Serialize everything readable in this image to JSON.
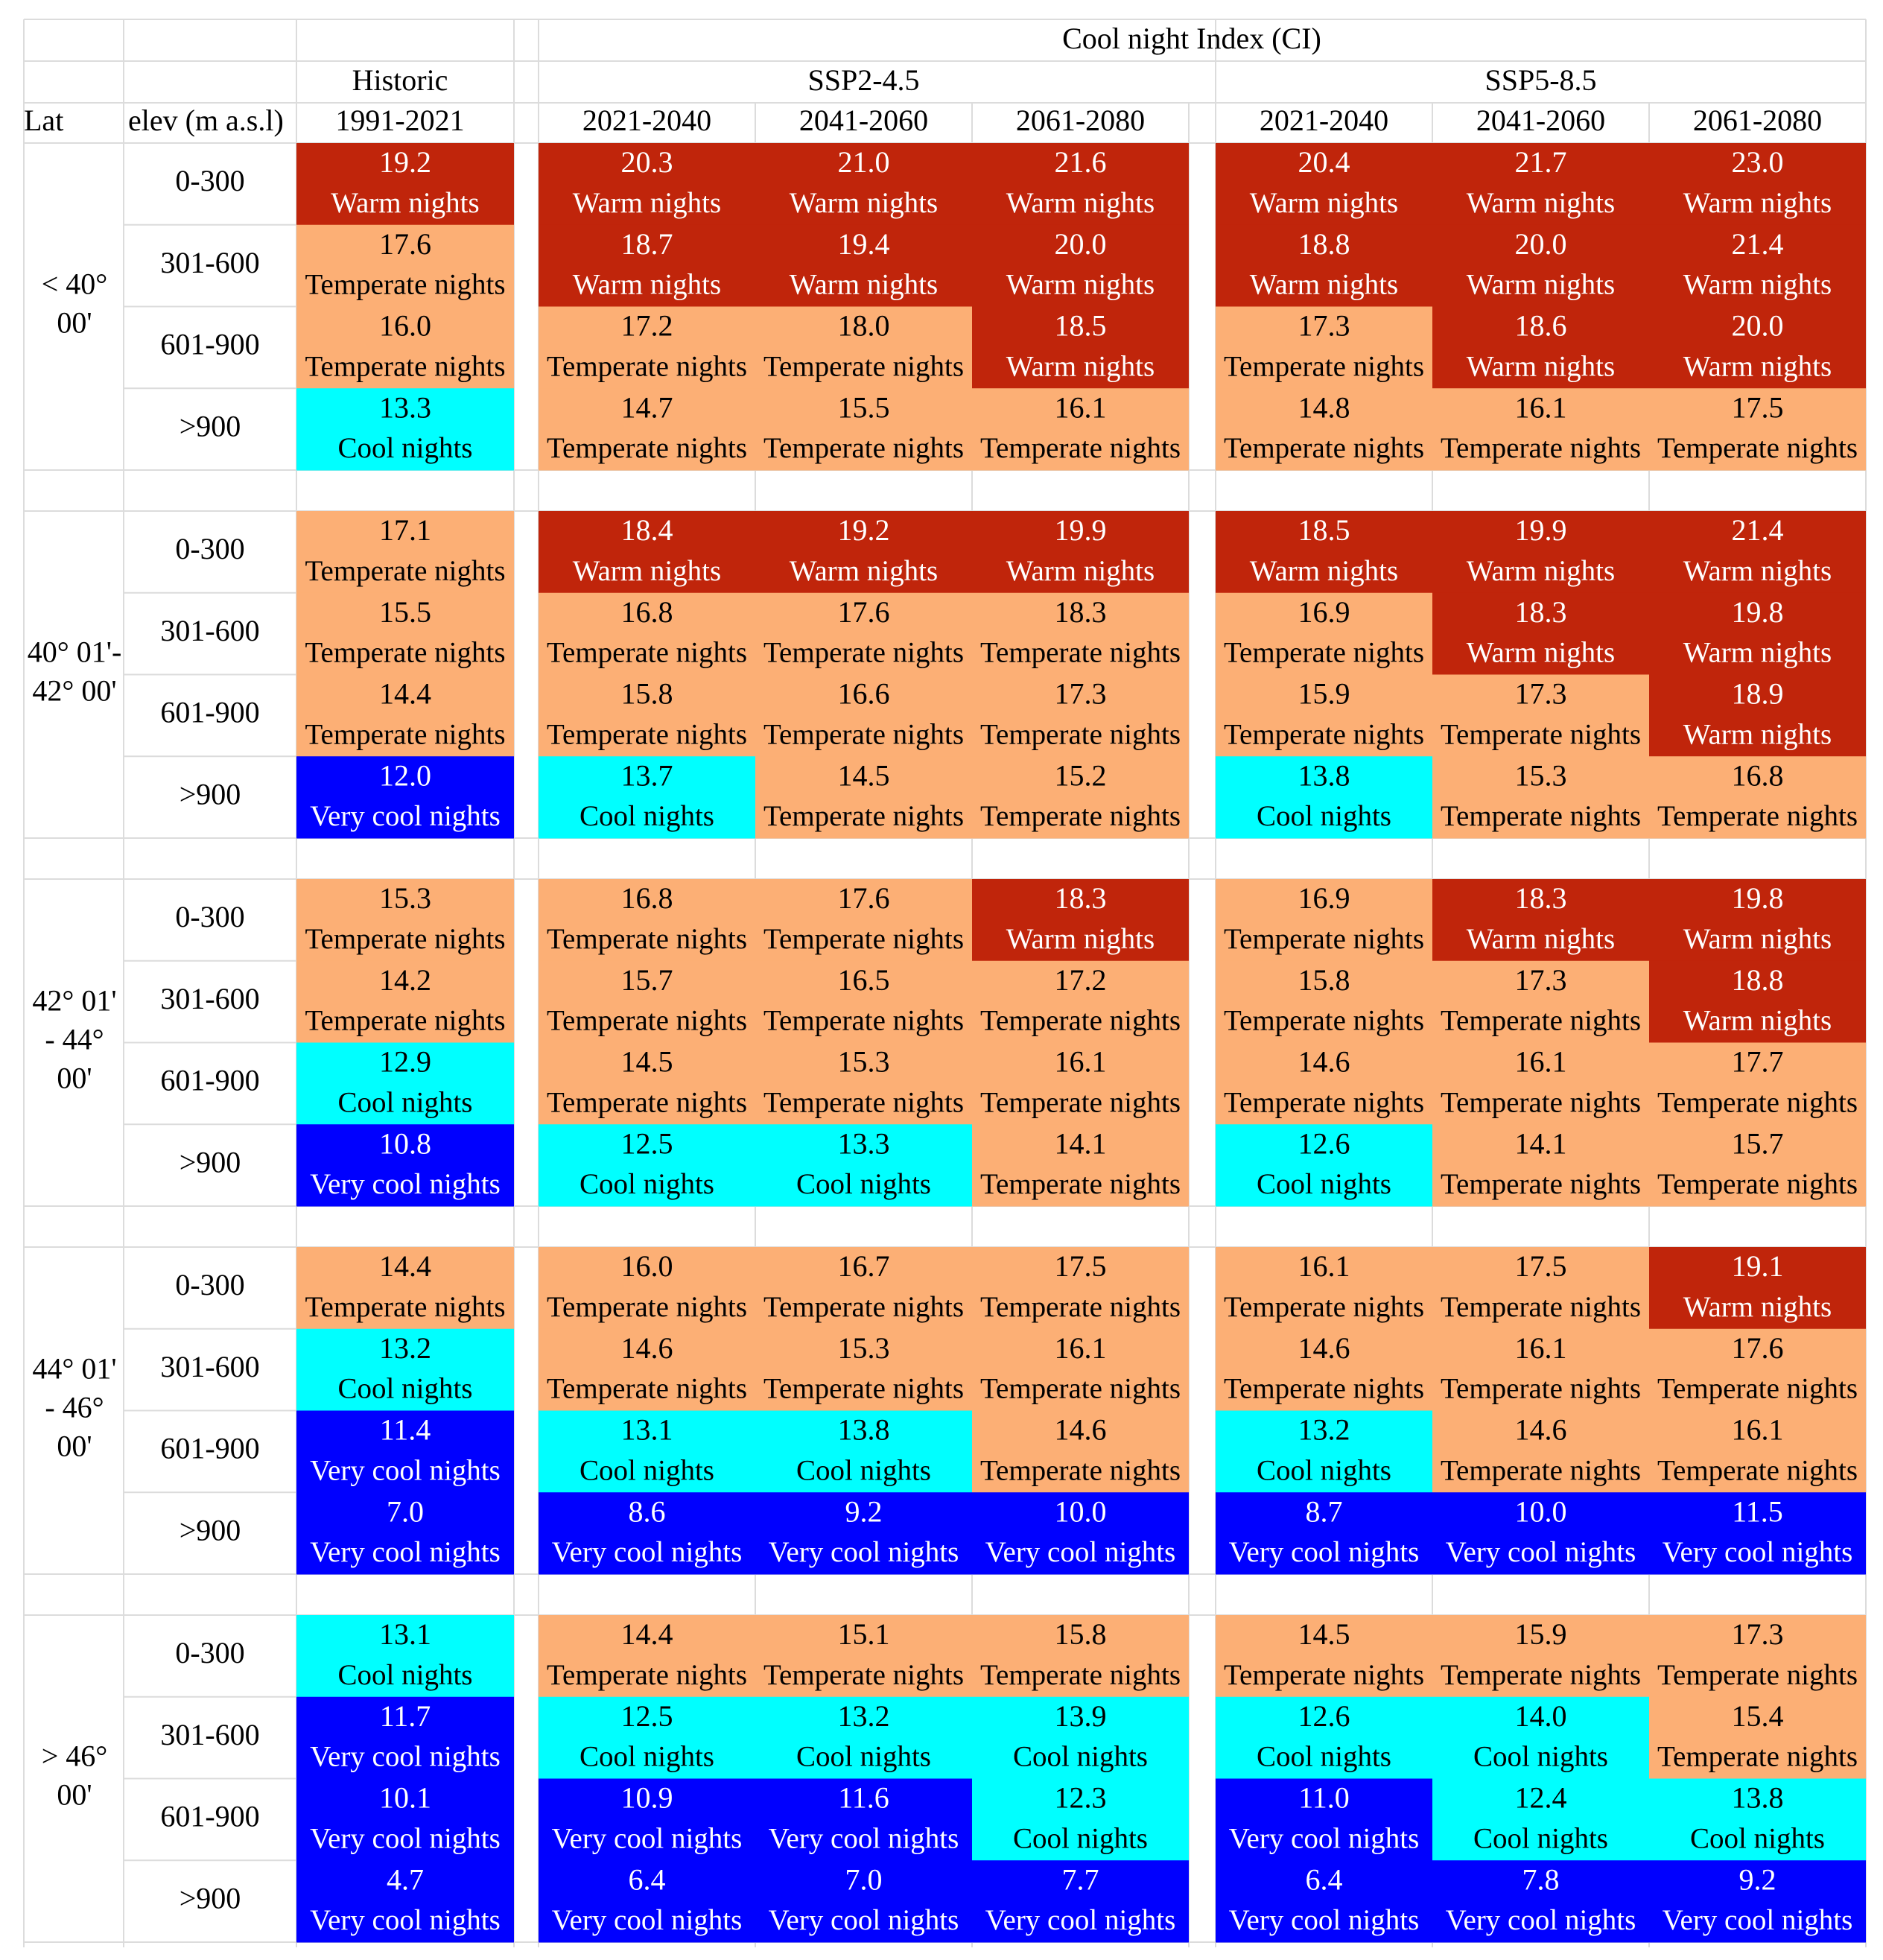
{
  "chart_data": {
    "type": "heatmap",
    "title": "Cool night Index (CI)",
    "row_header": {
      "lat": "Lat",
      "elev": "elev (m a.s.l)"
    },
    "historic": {
      "label": "Historic",
      "period": "1991-2021"
    },
    "scenarios": [
      {
        "name": "SSP2-4.5",
        "periods": [
          "2021-2040",
          "2041-2060",
          "2061-2080"
        ]
      },
      {
        "name": "SSP5-8.5",
        "periods": [
          "2021-2040",
          "2041-2060",
          "2061-2080"
        ]
      }
    ],
    "elevations": [
      "0-300",
      "301-600",
      "601-900",
      ">900"
    ],
    "categories": {
      "warm": {
        "label": "Warm nights",
        "color": "#c0250b",
        "text_color": "#ffffff"
      },
      "temperate": {
        "label": "Temperate nights",
        "color": "#fcaf75",
        "text_color": "#000000"
      },
      "cool": {
        "label": "Cool nights",
        "color": "#00ffff",
        "text_color": "#000000"
      },
      "verycool": {
        "label": "Very cool nights",
        "color": "#0000ff",
        "text_color": "#ffffff"
      }
    },
    "groups": [
      {
        "lat": [
          "< 40°",
          "00'"
        ],
        "rows": [
          {
            "elev": "0-300",
            "values": [
              19.2,
              20.3,
              21.0,
              21.6,
              20.4,
              21.7,
              23.0
            ],
            "classes": [
              "warm",
              "warm",
              "warm",
              "warm",
              "warm",
              "warm",
              "warm"
            ]
          },
          {
            "elev": "301-600",
            "values": [
              17.6,
              18.7,
              19.4,
              20.0,
              18.8,
              20.0,
              21.4
            ],
            "classes": [
              "temperate",
              "warm",
              "warm",
              "warm",
              "warm",
              "warm",
              "warm"
            ]
          },
          {
            "elev": "601-900",
            "values": [
              16.0,
              17.2,
              18.0,
              18.5,
              17.3,
              18.6,
              20.0
            ],
            "classes": [
              "temperate",
              "temperate",
              "temperate",
              "warm",
              "temperate",
              "warm",
              "warm"
            ]
          },
          {
            "elev": ">900",
            "values": [
              13.3,
              14.7,
              15.5,
              16.1,
              14.8,
              16.1,
              17.5
            ],
            "classes": [
              "cool",
              "temperate",
              "temperate",
              "temperate",
              "temperate",
              "temperate",
              "temperate"
            ]
          }
        ]
      },
      {
        "lat": [
          "40° 01'-",
          "42° 00'"
        ],
        "rows": [
          {
            "elev": "0-300",
            "values": [
              17.1,
              18.4,
              19.2,
              19.9,
              18.5,
              19.9,
              21.4
            ],
            "classes": [
              "temperate",
              "warm",
              "warm",
              "warm",
              "warm",
              "warm",
              "warm"
            ]
          },
          {
            "elev": "301-600",
            "values": [
              15.5,
              16.8,
              17.6,
              18.3,
              16.9,
              18.3,
              19.8
            ],
            "classes": [
              "temperate",
              "temperate",
              "temperate",
              "temperate",
              "temperate",
              "warm",
              "warm"
            ]
          },
          {
            "elev": "601-900",
            "values": [
              14.4,
              15.8,
              16.6,
              17.3,
              15.9,
              17.3,
              18.9
            ],
            "classes": [
              "temperate",
              "temperate",
              "temperate",
              "temperate",
              "temperate",
              "temperate",
              "warm"
            ]
          },
          {
            "elev": ">900",
            "values": [
              12.0,
              13.7,
              14.5,
              15.2,
              13.8,
              15.3,
              16.8
            ],
            "classes": [
              "verycool",
              "cool",
              "temperate",
              "temperate",
              "cool",
              "temperate",
              "temperate"
            ]
          }
        ]
      },
      {
        "lat": [
          "42° 01'",
          "- 44°",
          "00'"
        ],
        "rows": [
          {
            "elev": "0-300",
            "values": [
              15.3,
              16.8,
              17.6,
              18.3,
              16.9,
              18.3,
              19.8
            ],
            "classes": [
              "temperate",
              "temperate",
              "temperate",
              "warm",
              "temperate",
              "warm",
              "warm"
            ]
          },
          {
            "elev": "301-600",
            "values": [
              14.2,
              15.7,
              16.5,
              17.2,
              15.8,
              17.3,
              18.8
            ],
            "classes": [
              "temperate",
              "temperate",
              "temperate",
              "temperate",
              "temperate",
              "temperate",
              "warm"
            ]
          },
          {
            "elev": "601-900",
            "values": [
              12.9,
              14.5,
              15.3,
              16.1,
              14.6,
              16.1,
              17.7
            ],
            "classes": [
              "cool",
              "temperate",
              "temperate",
              "temperate",
              "temperate",
              "temperate",
              "temperate"
            ]
          },
          {
            "elev": ">900",
            "values": [
              10.8,
              12.5,
              13.3,
              14.1,
              12.6,
              14.1,
              15.7
            ],
            "classes": [
              "verycool",
              "cool",
              "cool",
              "temperate",
              "cool",
              "temperate",
              "temperate"
            ]
          }
        ]
      },
      {
        "lat": [
          "44° 01'",
          "- 46°",
          "00'"
        ],
        "rows": [
          {
            "elev": "0-300",
            "values": [
              14.4,
              16.0,
              16.7,
              17.5,
              16.1,
              17.5,
              19.1
            ],
            "classes": [
              "temperate",
              "temperate",
              "temperate",
              "temperate",
              "temperate",
              "temperate",
              "warm"
            ]
          },
          {
            "elev": "301-600",
            "values": [
              13.2,
              14.6,
              15.3,
              16.1,
              14.6,
              16.1,
              17.6
            ],
            "classes": [
              "cool",
              "temperate",
              "temperate",
              "temperate",
              "temperate",
              "temperate",
              "temperate"
            ]
          },
          {
            "elev": "601-900",
            "values": [
              11.4,
              13.1,
              13.8,
              14.6,
              13.2,
              14.6,
              16.1
            ],
            "classes": [
              "verycool",
              "cool",
              "cool",
              "temperate",
              "cool",
              "temperate",
              "temperate"
            ]
          },
          {
            "elev": ">900",
            "values": [
              7.0,
              8.6,
              9.2,
              10.0,
              8.7,
              10.0,
              11.5
            ],
            "classes": [
              "verycool",
              "verycool",
              "verycool",
              "verycool",
              "verycool",
              "verycool",
              "verycool"
            ]
          }
        ]
      },
      {
        "lat": [
          "> 46°",
          "00'"
        ],
        "rows": [
          {
            "elev": "0-300",
            "values": [
              13.1,
              14.4,
              15.1,
              15.8,
              14.5,
              15.9,
              17.3
            ],
            "classes": [
              "cool",
              "temperate",
              "temperate",
              "temperate",
              "temperate",
              "temperate",
              "temperate"
            ]
          },
          {
            "elev": "301-600",
            "values": [
              11.7,
              12.5,
              13.2,
              13.9,
              12.6,
              14.0,
              15.4
            ],
            "classes": [
              "verycool",
              "cool",
              "cool",
              "cool",
              "cool",
              "cool",
              "temperate"
            ]
          },
          {
            "elev": "601-900",
            "values": [
              10.1,
              10.9,
              11.6,
              12.3,
              11.0,
              12.4,
              13.8
            ],
            "classes": [
              "verycool",
              "verycool",
              "verycool",
              "cool",
              "verycool",
              "cool",
              "cool"
            ]
          },
          {
            "elev": ">900",
            "values": [
              4.7,
              6.4,
              7.0,
              7.7,
              6.4,
              7.8,
              9.2
            ],
            "classes": [
              "verycool",
              "verycool",
              "verycool",
              "verycool",
              "verycool",
              "verycool",
              "verycool"
            ]
          }
        ]
      }
    ]
  }
}
